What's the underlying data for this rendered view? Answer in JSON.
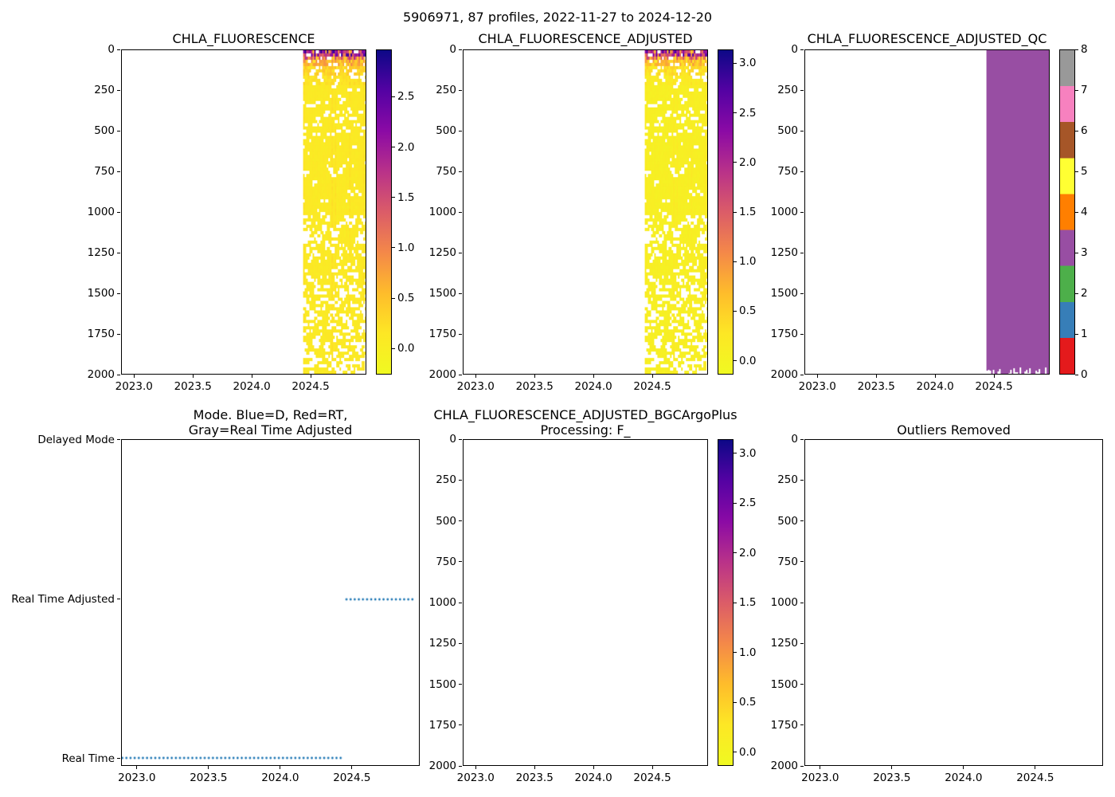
{
  "figure": {
    "suptitle": "5906971, 87 profiles, 2022-11-27 to 2024-12-20",
    "platform_id": "5906971",
    "n_profiles": 87,
    "date_start": "2022-11-27",
    "date_end": "2024-12-20"
  },
  "palette": {
    "background": "#ffffff",
    "axis_color": "#000000",
    "mode_dot_color": "#1f77b4",
    "qc3_purple": "#984ea3",
    "plasma_stops": [
      [
        13,
        8,
        135
      ],
      [
        84,
        2,
        163
      ],
      [
        139,
        10,
        165
      ],
      [
        185,
        50,
        137
      ],
      [
        219,
        92,
        104
      ],
      [
        244,
        136,
        73
      ],
      [
        254,
        188,
        43
      ],
      [
        253,
        231,
        37
      ],
      [
        240,
        249,
        33
      ]
    ]
  },
  "chart_data": [
    {
      "type": "heatmap",
      "title": "CHLA_FLUORESCENCE",
      "x": {
        "range": [
          2022.89,
          2024.973
        ],
        "ticks": [
          2023.0,
          2023.5,
          2024.0,
          2024.5
        ],
        "tick_labels": [
          "2023.0",
          "2023.5",
          "2024.0",
          "2024.5"
        ]
      },
      "y": {
        "range": [
          0,
          2000
        ],
        "ticks": [
          0,
          250,
          500,
          750,
          1000,
          1250,
          1500,
          1750,
          2000
        ],
        "tick_labels": [
          "0",
          "250",
          "500",
          "750",
          "1000",
          "1250",
          "1500",
          "1750",
          "2000"
        ]
      },
      "data_block": {
        "time_start": 2024.44,
        "time_end": 2024.973,
        "depth_min": 0,
        "depth_max": 2000,
        "surface_value_range": [
          0.4,
          2.9
        ],
        "deep_value_range": [
          0.0,
          0.2
        ],
        "note": "High chlorophyll (orange/purple/navy) only above ~120 dbar; yellow ~0 elsewhere; white pixels = missing samples, denser below 1000 dbar and near 2000 dbar; no data before 2024.44"
      },
      "colorbar": {
        "cmap": "plasma_r",
        "vmin": -0.26,
        "vmax": 2.97,
        "ticks": [
          0.0,
          0.5,
          1.0,
          1.5,
          2.0,
          2.5
        ],
        "tick_labels": [
          "0.0",
          "0.5",
          "1.0",
          "1.5",
          "2.0",
          "2.5"
        ]
      },
      "seed": 7
    },
    {
      "type": "heatmap",
      "title": "CHLA_FLUORESCENCE_ADJUSTED",
      "x": {
        "range": [
          2022.89,
          2024.973
        ],
        "ticks": [
          2023.0,
          2023.5,
          2024.0,
          2024.5
        ],
        "tick_labels": [
          "2023.0",
          "2023.5",
          "2024.0",
          "2024.5"
        ]
      },
      "y": {
        "range": [
          0,
          2000
        ],
        "ticks": [
          0,
          250,
          500,
          750,
          1000,
          1250,
          1500,
          1750,
          2000
        ],
        "tick_labels": [
          "0",
          "250",
          "500",
          "750",
          "1000",
          "1250",
          "1500",
          "1750",
          "2000"
        ]
      },
      "data_block": {
        "time_start": 2024.44,
        "time_end": 2024.973,
        "depth_min": 0,
        "depth_max": 2000,
        "surface_value_range": [
          0.4,
          3.1
        ],
        "deep_value_range": [
          0.0,
          0.2
        ],
        "note": "Visually identical to CHLA_FLUORESCENCE panel"
      },
      "colorbar": {
        "cmap": "plasma_r",
        "vmin": -0.14,
        "vmax": 3.14,
        "ticks": [
          0.0,
          0.5,
          1.0,
          1.5,
          2.0,
          2.5,
          3.0
        ],
        "tick_labels": [
          "0.0",
          "0.5",
          "1.0",
          "1.5",
          "2.0",
          "2.5",
          "3.0"
        ]
      },
      "seed": 7
    },
    {
      "type": "heatmap-qc",
      "title": "CHLA_FLUORESCENCE_ADJUSTED_QC",
      "x": {
        "range": [
          2022.89,
          2024.973
        ],
        "ticks": [
          2023.0,
          2023.5,
          2024.0,
          2024.5
        ],
        "tick_labels": [
          "2023.0",
          "2023.5",
          "2024.0",
          "2024.5"
        ]
      },
      "y": {
        "range": [
          0,
          2000
        ],
        "ticks": [
          0,
          250,
          500,
          750,
          1000,
          1250,
          1500,
          1750,
          2000
        ],
        "tick_labels": [
          "0",
          "250",
          "500",
          "750",
          "1000",
          "1250",
          "1500",
          "1750",
          "2000"
        ]
      },
      "data_block": {
        "time_start": 2024.44,
        "time_end": 2024.973,
        "depth_min": 0,
        "depth_max": 2000,
        "qc_flag": 3,
        "fill_color": "#984ea3",
        "note": "Solid QC flag 3 (purple) block with slightly ragged bottom edge near 2000 dbar; no data before 2024.44"
      },
      "colorbar": {
        "type": "discrete",
        "flag_values": [
          0,
          1,
          2,
          3,
          4,
          5,
          6,
          7,
          8
        ],
        "flag_colors": [
          "#e41a1c",
          "#377eb8",
          "#4daf4a",
          "#984ea3",
          "#ff7f00",
          "#ffff33",
          "#a65628",
          "#f781bf",
          "#999999"
        ],
        "ticks": [
          0,
          1,
          2,
          3,
          4,
          5,
          6,
          7,
          8
        ],
        "tick_labels": [
          "0",
          "1",
          "2",
          "3",
          "4",
          "5",
          "6",
          "7",
          "8"
        ]
      },
      "seed": 11
    },
    {
      "type": "scatter",
      "title_lines": [
        "Mode. Blue=D, Red=RT,",
        "Gray=Real Time Adjusted"
      ],
      "x": {
        "range": [
          2022.89,
          2024.973
        ],
        "ticks": [
          2023.0,
          2023.5,
          2024.0,
          2024.5
        ],
        "tick_labels": [
          "2023.0",
          "2023.5",
          "2024.0",
          "2024.5"
        ]
      },
      "y_categories": [
        "Delayed Mode",
        "Real Time Adjusted",
        "Real Time"
      ],
      "series": [
        {
          "mode": "Real Time",
          "time_start": 2022.893,
          "time_end": 2024.45,
          "color": "#1f77b4",
          "marker": "dot"
        },
        {
          "mode": "Real Time Adjusted",
          "time_start": 2024.465,
          "time_end": 2024.952,
          "color": "#1f77b4",
          "marker": "dot"
        }
      ],
      "note": "No Delayed Mode points; Real Time until ~2024.45, Real Time Adjusted afterwards"
    },
    {
      "type": "heatmap-empty",
      "title_lines": [
        "CHLA_FLUORESCENCE_ADJUSTED_BGCArgoPlus",
        "Processing: F_"
      ],
      "x": {
        "range": [
          2022.89,
          2024.973
        ],
        "ticks": [
          2023.0,
          2023.5,
          2024.0,
          2024.5
        ],
        "tick_labels": [
          "2023.0",
          "2023.5",
          "2024.0",
          "2024.5"
        ]
      },
      "y": {
        "range": [
          0,
          2000
        ],
        "ticks": [
          0,
          250,
          500,
          750,
          1000,
          1250,
          1500,
          1750,
          2000
        ],
        "tick_labels": [
          "0",
          "250",
          "500",
          "750",
          "1000",
          "1250",
          "1500",
          "1750",
          "2000"
        ]
      },
      "data_block": null,
      "colorbar": {
        "cmap": "plasma_r",
        "vmin": -0.14,
        "vmax": 3.14,
        "ticks": [
          0.0,
          0.5,
          1.0,
          1.5,
          2.0,
          2.5,
          3.0
        ],
        "tick_labels": [
          "0.0",
          "0.5",
          "1.0",
          "1.5",
          "2.0",
          "2.5",
          "3.0"
        ]
      },
      "note": "Empty axes, no plotted data"
    },
    {
      "type": "heatmap-empty",
      "title": "Outliers Removed",
      "x": {
        "range": [
          2022.89,
          2024.973
        ],
        "ticks": [
          2023.0,
          2023.5,
          2024.0,
          2024.5
        ],
        "tick_labels": [
          "2023.0",
          "2023.5",
          "2024.0",
          "2024.5"
        ]
      },
      "y": {
        "range": [
          0,
          2000
        ],
        "ticks": [
          0,
          250,
          500,
          750,
          1000,
          1250,
          1500,
          1750,
          2000
        ],
        "tick_labels": [
          "0",
          "250",
          "500",
          "750",
          "1000",
          "1250",
          "1500",
          "1750",
          "2000"
        ]
      },
      "data_block": null,
      "note": "Empty axes, no plotted data"
    }
  ]
}
